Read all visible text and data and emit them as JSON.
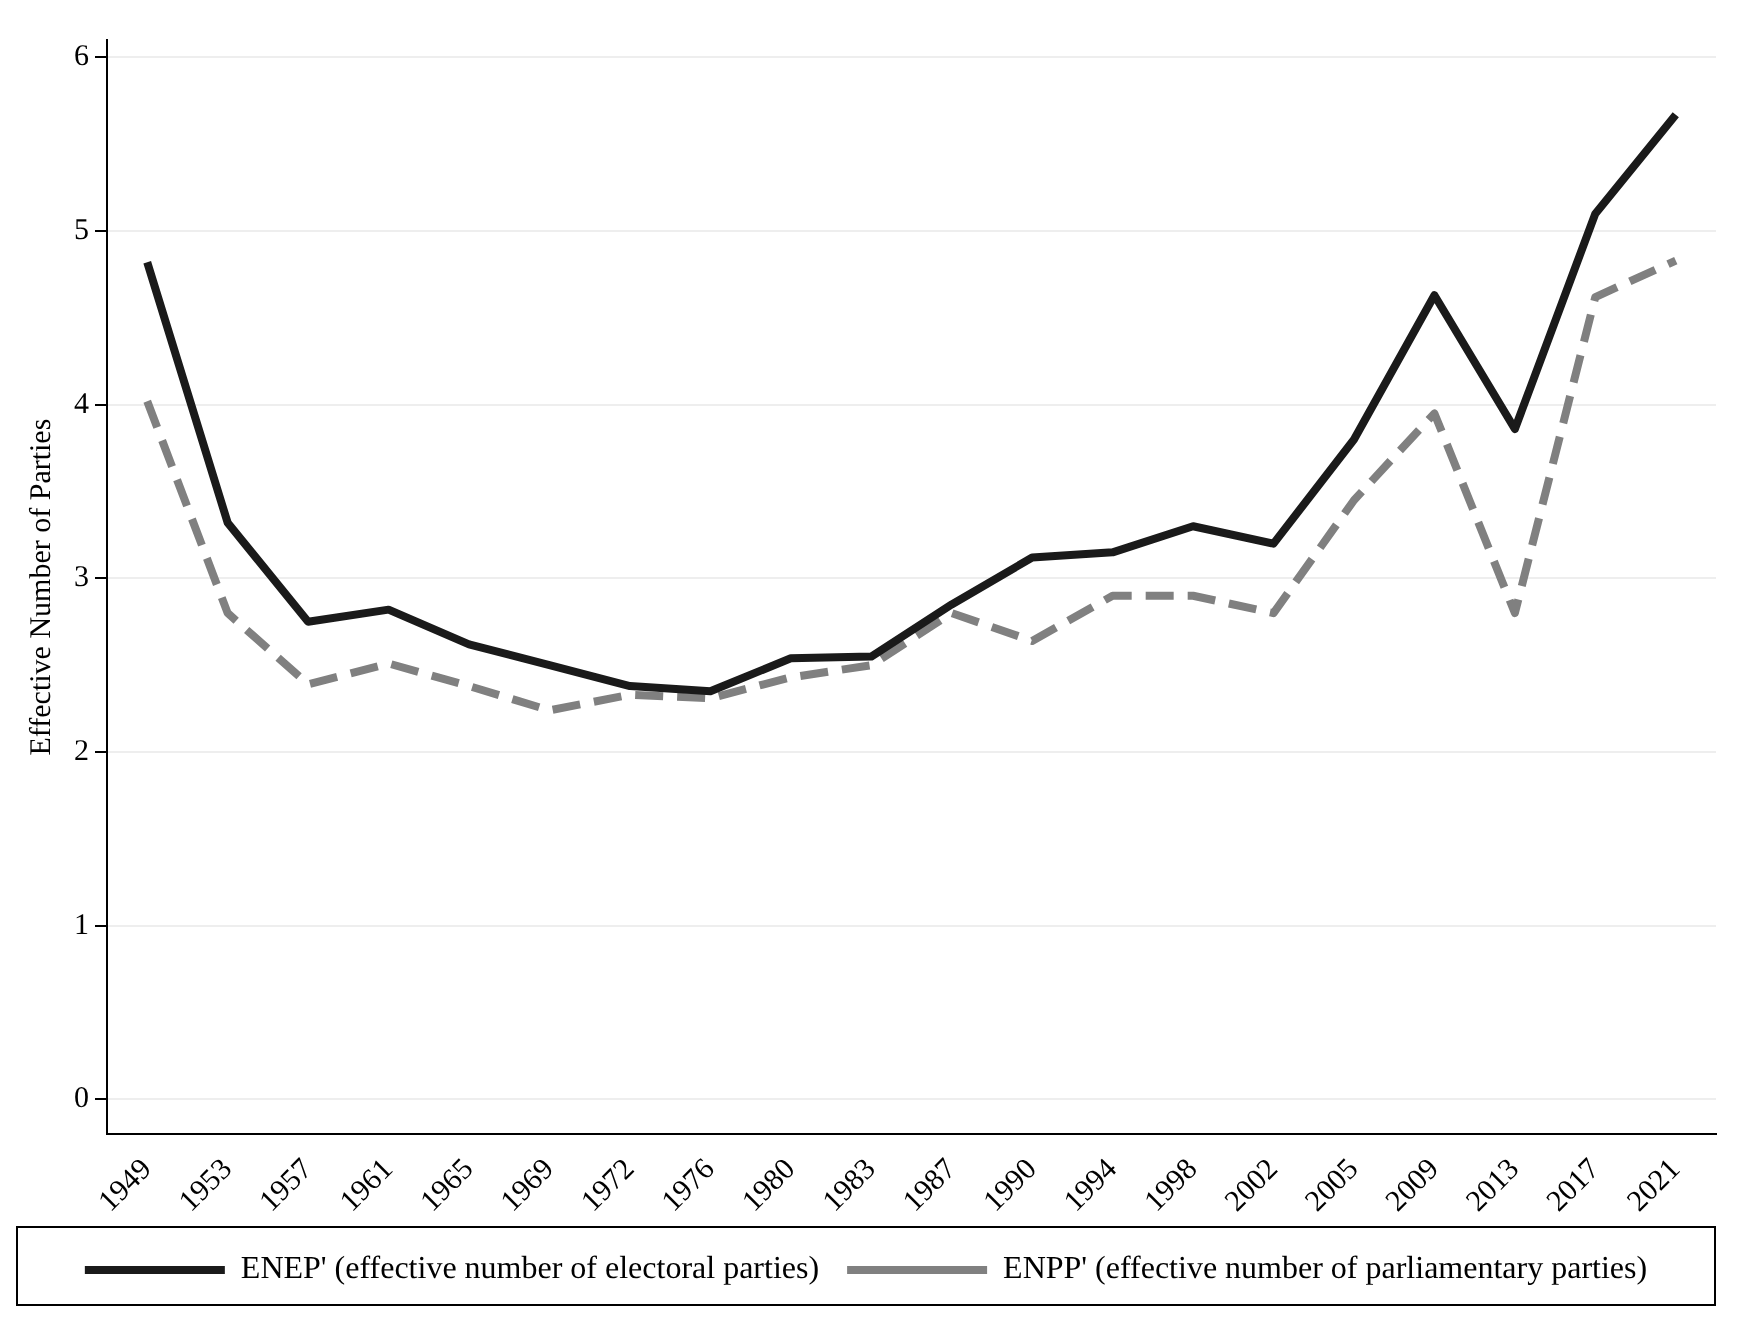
{
  "chart_data": {
    "type": "line",
    "ylabel": "Effective Number of Parties",
    "categories": [
      "1949",
      "1953",
      "1957",
      "1961",
      "1965",
      "1969",
      "1972",
      "1976",
      "1980",
      "1983",
      "1987",
      "1990",
      "1994",
      "1998",
      "2002",
      "2005",
      "2009",
      "2013",
      "2017",
      "2021"
    ],
    "series": [
      {
        "name": "ENEP' (effective number of electoral parties)",
        "color": "#1a1a1a",
        "line_style": "solid",
        "values": [
          4.82,
          3.32,
          2.75,
          2.82,
          2.62,
          2.5,
          2.38,
          2.35,
          2.54,
          2.55,
          2.85,
          3.12,
          3.15,
          3.3,
          3.2,
          3.8,
          4.63,
          3.86,
          5.1,
          5.67
        ]
      },
      {
        "name": "ENPP' (effective number of parliamentary parties)",
        "color": "#808080",
        "line_style": "dashed",
        "values": [
          4.02,
          2.8,
          2.39,
          2.51,
          2.38,
          2.24,
          2.33,
          2.31,
          2.43,
          2.5,
          2.8,
          2.64,
          2.9,
          2.9,
          2.8,
          3.45,
          3.95,
          2.8,
          4.62,
          4.83
        ]
      }
    ],
    "ylim": [
      -0.2,
      6.1
    ],
    "yticks": [
      0,
      1,
      2,
      3,
      4,
      5,
      6
    ],
    "grid": "y",
    "legend": "bottom",
    "marker": "none"
  }
}
